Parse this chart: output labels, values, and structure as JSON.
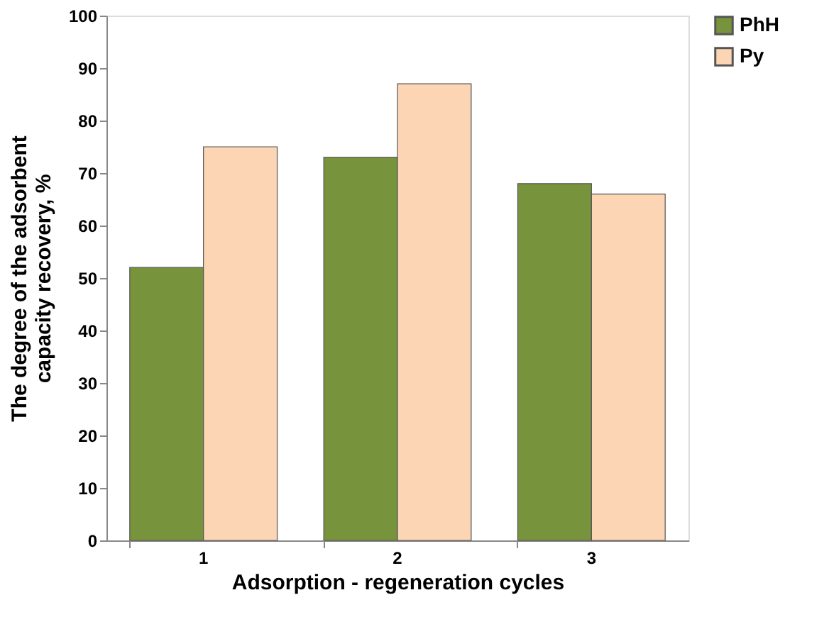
{
  "chart_data": {
    "type": "bar",
    "xlabel": "Adsorption - regeneration cycles",
    "ylabel": "The degree of the adsorbent capacity recovery, %",
    "categories": [
      "1",
      "2",
      "3"
    ],
    "series": [
      {
        "name": "PhH",
        "color": "#77933c",
        "values": [
          52,
          73,
          68
        ]
      },
      {
        "name": "Py",
        "color": "#fcd5b5",
        "values": [
          75,
          87,
          66
        ]
      }
    ],
    "ylim": [
      0,
      100
    ],
    "yticks": [
      0,
      10,
      20,
      30,
      40,
      50,
      60,
      70,
      80,
      90,
      100
    ],
    "grid": false,
    "legend": "right"
  }
}
